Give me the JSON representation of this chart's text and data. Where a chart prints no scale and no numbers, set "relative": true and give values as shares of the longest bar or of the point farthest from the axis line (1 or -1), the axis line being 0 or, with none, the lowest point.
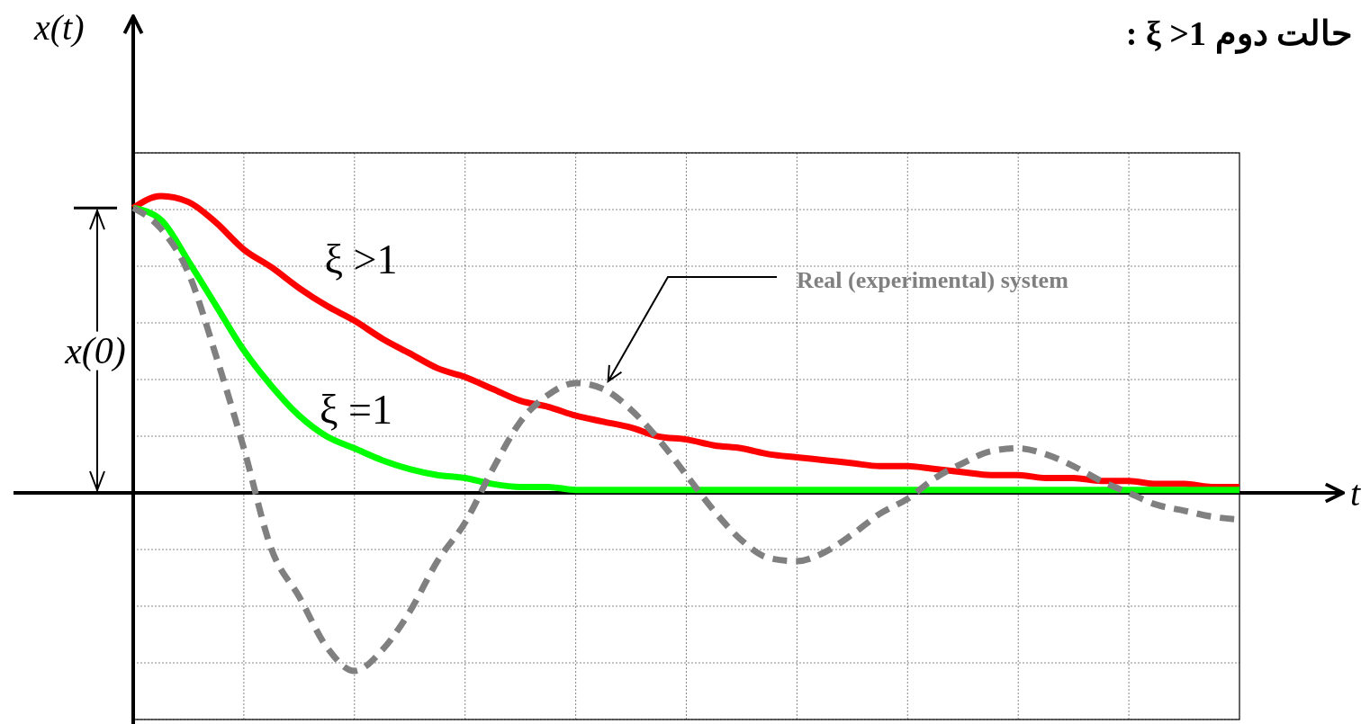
{
  "chart_data": {
    "type": "line",
    "title": "حالت دوم ξ >1 :",
    "ylabel": "x(t)",
    "xlabel": "t",
    "relative": true,
    "grid": true,
    "legend": false,
    "marker": "none",
    "categories": [
      null,
      null,
      null,
      null,
      null,
      null,
      null,
      null,
      null,
      null,
      null,
      null,
      null,
      null,
      null,
      null,
      null,
      null,
      null,
      null,
      null,
      null,
      null,
      null,
      null,
      null,
      null,
      null,
      null,
      null,
      null,
      null,
      null,
      null,
      null,
      null,
      null,
      null,
      null,
      null,
      null
    ],
    "series": [
      {
        "name": "ξ >1",
        "color": "#ff0000",
        "line_style": "solid",
        "values": [
          0.96,
          1,
          0.98,
          0.91,
          0.82,
          0.76,
          0.69,
          0.63,
          0.58,
          0.52,
          0.47,
          0.42,
          0.39,
          0.35,
          0.31,
          0.29,
          0.26,
          0.24,
          0.22,
          0.19,
          0.18,
          0.16,
          0.15,
          0.13,
          0.12,
          0.11,
          0.1,
          0.09,
          0.09,
          0.08,
          0.07,
          0.06,
          0.06,
          0.05,
          0.05,
          0.04,
          0.04,
          0.03,
          0.03,
          0.02,
          0.02
        ]
      },
      {
        "name": "ξ =1",
        "color": "#00ff00",
        "line_style": "solid",
        "values": [
          0.96,
          0.92,
          0.78,
          0.63,
          0.48,
          0.36,
          0.26,
          0.19,
          0.15,
          0.11,
          0.08,
          0.06,
          0.05,
          0.03,
          0.02,
          0.02,
          0.01,
          0.01,
          0.01,
          0.01,
          0.01,
          0.01,
          0.01,
          0.01,
          0.01,
          0.01,
          0.01,
          0.01,
          0.01,
          0.01,
          0.01,
          0.01,
          0.01,
          0.01,
          0.01,
          0.01,
          0.01,
          0.01,
          0.01,
          0.01,
          0.01
        ]
      },
      {
        "name": "Real (experimental) system",
        "color": "#808080",
        "line_style": "dashed",
        "values": [
          0.96,
          0.89,
          0.74,
          0.46,
          0.15,
          -0.19,
          -0.35,
          -0.52,
          -0.6,
          -0.53,
          -0.4,
          -0.23,
          -0.1,
          0.08,
          0.24,
          0.33,
          0.37,
          0.35,
          0.28,
          0.18,
          0.06,
          -0.06,
          -0.16,
          -0.22,
          -0.23,
          -0.2,
          -0.14,
          -0.07,
          -0.02,
          0.05,
          0.1,
          0.14,
          0.15,
          0.13,
          0.09,
          0.04,
          0,
          -0.04,
          -0.06,
          -0.08,
          -0.09
        ]
      }
    ],
    "annotations": [
      "x(0)"
    ]
  }
}
